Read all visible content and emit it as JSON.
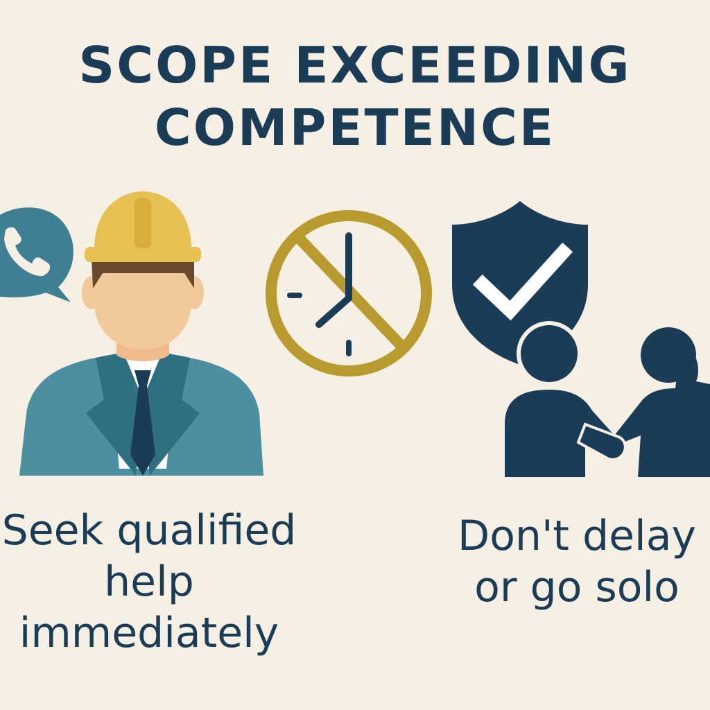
{
  "title": {
    "line1": "SCOPE EXCEEDING",
    "line2": "COMPETENCE"
  },
  "captions": {
    "left": [
      "Seek qualified",
      "help",
      "immediately"
    ],
    "right": [
      "Don't delay",
      "or go solo"
    ]
  },
  "icons": {
    "left": [
      "phone-chat-bubble-icon",
      "engineer-hard-hat-icon"
    ],
    "center": "no-delay-clock-icon",
    "right": [
      "shield-check-icon",
      "handshake-people-icon"
    ]
  },
  "colors": {
    "background": "#f6efe4",
    "navy": "#1b3c57",
    "teal": "#4b8fa0",
    "gold": "#b89a2e",
    "helmet": "#e6c052",
    "skin": "#f2c99a"
  }
}
